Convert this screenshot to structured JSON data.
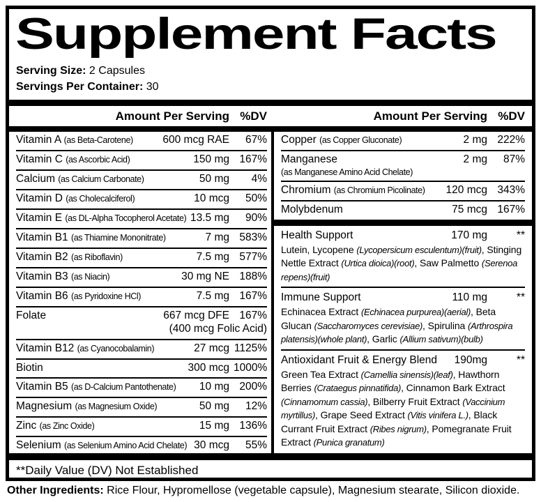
{
  "colors": {
    "ink": "#000000",
    "background": "#ffffff"
  },
  "title": "Supplement Facts",
  "serving": {
    "size_label": "Serving Size:",
    "size_value": " 2 Capsules",
    "container_label": "Servings Per Container:",
    "container_value": " 30"
  },
  "columns": {
    "amount_header": "Amount Per Serving",
    "dv_header": "%DV"
  },
  "left_rows": [
    {
      "name": "Vitamin A",
      "form": "(as Beta-Carotene)",
      "amount": "600 mcg RAE",
      "dv": "67%"
    },
    {
      "name": "Vitamin C",
      "form": "(as Ascorbic Acid)",
      "amount": "150 mg",
      "dv": "167%"
    },
    {
      "name": "Calcium",
      "form": "(as Calcium Carbonate)",
      "amount": "50 mg",
      "dv": "4%"
    },
    {
      "name": "Vitamin D",
      "form": "(as Cholecalciferol)",
      "amount": "10 mcg",
      "dv": "50%"
    },
    {
      "name": "Vitamin E",
      "form": "(as DL-Alpha Tocopherol Acetate)",
      "amount": "13.5 mg",
      "dv": "90%"
    },
    {
      "name": "Vitamin B1",
      "form": "(as Thiamine Mononitrate)",
      "amount": "7 mg",
      "dv": "583%"
    },
    {
      "name": "Vitamin B2",
      "form": "(as Riboflavin)",
      "amount": "7.5 mg",
      "dv": "577%"
    },
    {
      "name": "Vitamin B3",
      "form": "(as Niacin)",
      "amount": "30 mg NE",
      "dv": "188%"
    },
    {
      "name": "Vitamin B6",
      "form": "(as Pyridoxine HCl)",
      "amount": "7.5 mg",
      "dv": "167%"
    },
    {
      "name": "Folate",
      "form": "",
      "amount": "667 mcg DFE",
      "dv": "167%",
      "amount2": "(400 mcg Folic Acid)"
    },
    {
      "name": "Vitamin B12",
      "form": "(as Cyanocobalamin)",
      "amount": "27 mcg",
      "dv": "1125%"
    },
    {
      "name": "Biotin",
      "form": "",
      "amount": "300 mcg",
      "dv": "1000%"
    },
    {
      "name": "Vitamin B5",
      "form": "(as D-Calcium Pantothenate)",
      "amount": "10 mg",
      "dv": "200%"
    },
    {
      "name": "Magnesium",
      "form": "(as Magnesium Oxide)",
      "amount": "50 mg",
      "dv": "12%"
    },
    {
      "name": "Zinc",
      "form": "(as Zinc Oxide)",
      "amount": "15 mg",
      "dv": "136%"
    },
    {
      "name": "Selenium",
      "form": "(as Selenium Amino Acid Chelate)",
      "amount": "30 mcg",
      "dv": "55%"
    }
  ],
  "right_rows": [
    {
      "name": "Copper",
      "form": "(as Copper Gluconate)",
      "amount": "2 mg",
      "dv": "222%"
    },
    {
      "name": "Manganese",
      "form": "(as Manganese Amino Acid Chelate)",
      "amount": "2 mg",
      "dv": "87%"
    },
    {
      "name": "Chromium",
      "form": "(as Chromium Picolinate)",
      "amount": "120 mcg",
      "dv": "343%"
    },
    {
      "name": "Molybdenum",
      "form": "",
      "amount": "75 mcg",
      "dv": "167%"
    }
  ],
  "blends": [
    {
      "name": "Health Support",
      "amount": "170 mg",
      "dv": "**",
      "description": "Lutein, Lycopene (Lycopersicum esculentum)(fruit), Stinging Nettle Extract (Urtica dioica)(root), Saw Palmetto (Serenoa repens)(fruit)"
    },
    {
      "name": "Immune Support",
      "amount": "110 mg",
      "dv": "**",
      "description": "Echinacea Extract (Echinacea purpurea)(aerial), Beta Glucan (Saccharomyces cerevisiae), Spirulina (Arthrospira platensis)(whole plant), Garlic (Allium sativum)(bulb)"
    },
    {
      "name": "Antioxidant Fruit & Energy Blend",
      "amount": "190mg",
      "dv": "**",
      "description": "Green Tea Extract (Camellia sinensis)(leaf), Hawthorn Berries (Crataegus pinnatifida), Cinnamon Bark Extract (Cinnamomum cassia), Bilberry Fruit Extract (Vaccinium myrtillus), Grape Seed Extract (Vitis vinifera L.), Black Currant Fruit Extract (Ribes nigrum), Pomegranate Fruit Extract (Punica granatum)"
    }
  ],
  "footnote": "**Daily Value (DV) Not Established",
  "other_ingredients": {
    "label": "Other Ingredients:",
    "text": " Rice Flour, Hypromellose (vegetable capsule), Magnesium stearate, Silicon dioxide."
  }
}
